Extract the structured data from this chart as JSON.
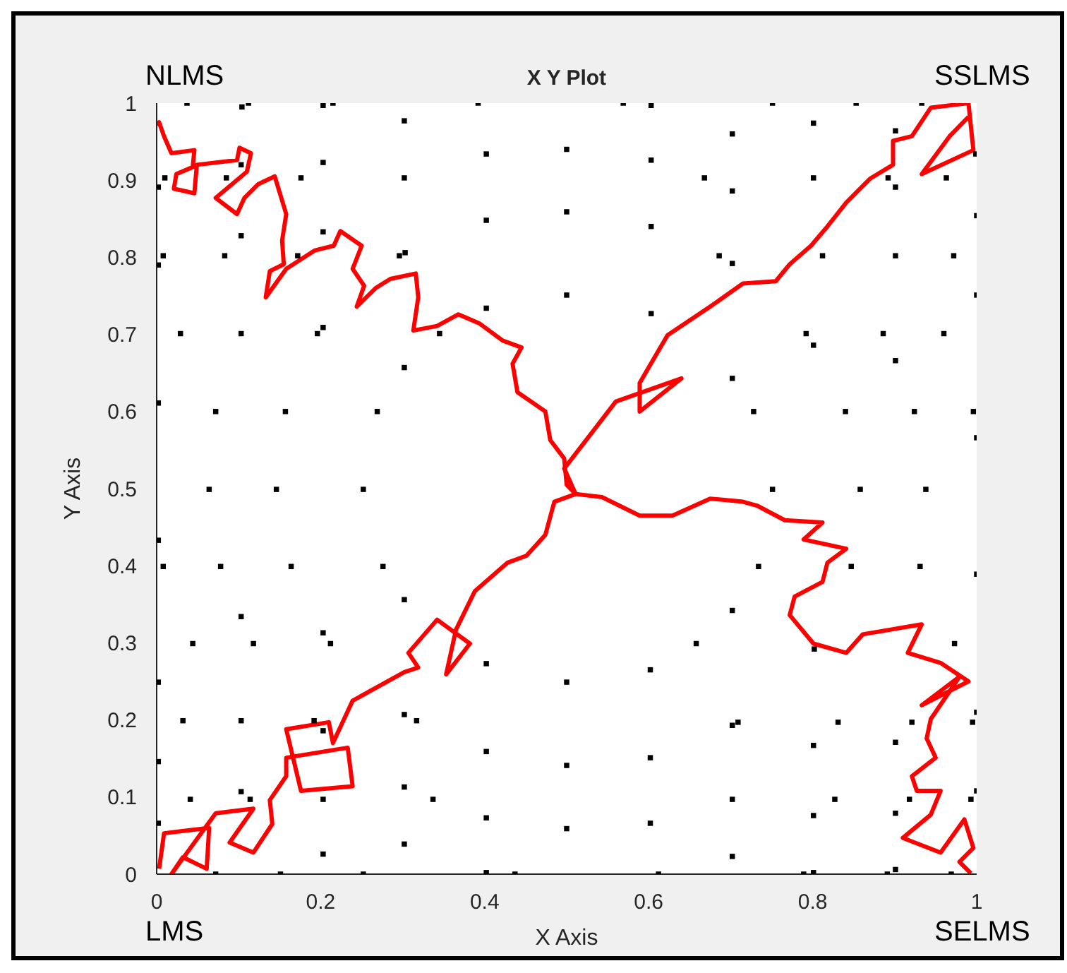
{
  "chart_data": {
    "type": "scatter",
    "title": "X Y Plot",
    "xlabel": "X Axis",
    "ylabel": "Y Axis",
    "xlim": [
      0,
      1
    ],
    "ylim": [
      0,
      1
    ],
    "xticks": [
      0,
      0.2,
      0.4,
      0.6,
      0.8,
      1
    ],
    "yticks": [
      0,
      0.1,
      0.2,
      0.3,
      0.4,
      0.5,
      0.6,
      0.7,
      0.8,
      0.9,
      1
    ],
    "annotations": [
      "NLMS",
      "SSLMS",
      "LMS",
      "SELMS"
    ],
    "series": [
      {
        "color": "#000000",
        "marker": "square",
        "x": [
          0.037,
          0.104,
          0.112,
          0.203,
          0.215,
          0.392,
          0.302,
          0.402,
          0.5,
          0.203,
          0.103,
          0.01,
          0.085,
          0.176,
          0.302,
          0.002,
          0.402,
          0.5,
          0.103,
          0.203,
          0.008,
          0.083,
          0.172,
          0.296,
          0.303,
          0.002,
          0.5,
          0.402,
          0.029,
          0.103,
          0.196,
          0.203,
          0.345,
          0.302,
          0.002,
          0.072,
          0.157,
          0.269,
          0.569,
          0.603,
          0.751,
          0.853,
          0.933,
          0.801,
          0.702,
          0.901,
          0.603,
          0.999,
          0.668,
          0.702,
          0.801,
          0.892,
          0.901,
          0.963,
          0.603,
          1,
          0.686,
          0.702,
          0.812,
          0.901,
          0.972,
          0.603,
          1,
          0.792,
          0.801,
          0.886,
          0.96,
          0.901,
          0.702,
          0.728,
          0.84,
          0.924,
          0.996,
          1,
          0.064,
          0.146,
          0.252,
          0.002,
          0.008,
          0.078,
          0.164,
          0.276,
          0.302,
          0.103,
          0.203,
          0.212,
          0.044,
          0.118,
          0.402,
          0.002,
          0.5,
          0.032,
          0.103,
          0.302,
          0.317,
          0.192,
          0.203,
          0.402,
          0.002,
          0.5,
          0.041,
          0.103,
          0.114,
          0.203,
          0.302,
          0.337,
          0.402,
          0.5,
          0.002,
          0.203,
          0.302,
          0.072,
          0.151,
          0.252,
          0.402,
          0.437,
          0.751,
          0.858,
          0.938,
          0.734,
          0.847,
          0.931,
          1,
          0.702,
          0.658,
          0.802,
          0.973,
          0.602,
          0.702,
          0.709,
          0.831,
          0.921,
          0.995,
          1,
          0.801,
          0.901,
          0.602,
          0.702,
          0.827,
          0.918,
          0.993,
          1,
          0.801,
          0.901,
          0.602,
          0.702,
          0.612,
          0.789,
          0.801,
          0.891,
          0.901,
          0.969
        ],
        "values": [
          1,
          0.995,
          1,
          0.997,
          1,
          1,
          0.977,
          0.934,
          0.94,
          0.923,
          0.92,
          0.903,
          0.903,
          0.903,
          0.903,
          0.891,
          0.848,
          0.859,
          0.828,
          0.833,
          0.802,
          0.802,
          0.802,
          0.802,
          0.806,
          0.79,
          0.751,
          0.734,
          0.701,
          0.701,
          0.701,
          0.709,
          0.701,
          0.657,
          0.611,
          0.6,
          0.6,
          0.6,
          1,
          0.997,
          1,
          1,
          1,
          0.974,
          0.96,
          0.964,
          0.926,
          0.934,
          0.903,
          0.886,
          0.903,
          0.903,
          0.891,
          0.903,
          0.84,
          0.854,
          0.802,
          0.792,
          0.802,
          0.802,
          0.802,
          0.727,
          0.751,
          0.701,
          0.686,
          0.701,
          0.701,
          0.666,
          0.643,
          0.6,
          0.6,
          0.6,
          0.6,
          0.566,
          0.499,
          0.499,
          0.499,
          0.433,
          0.399,
          0.399,
          0.399,
          0.399,
          0.356,
          0.334,
          0.313,
          0.299,
          0.299,
          0.299,
          0.273,
          0.249,
          0.249,
          0.199,
          0.199,
          0.207,
          0.199,
          0.199,
          0.186,
          0.159,
          0.146,
          0.141,
          0.097,
          0.107,
          0.097,
          0.097,
          0.113,
          0.097,
          0.073,
          0.059,
          0.066,
          0.026,
          0.039,
          0,
          0,
          0,
          0.002,
          0,
          0.499,
          0.499,
          0.499,
          0.399,
          0.399,
          0.399,
          0.389,
          0.342,
          0.299,
          0.292,
          0.299,
          0.265,
          0.193,
          0.197,
          0.197,
          0.197,
          0.197,
          0.21,
          0.167,
          0.171,
          0.151,
          0.097,
          0.097,
          0.097,
          0.097,
          0.108,
          0.076,
          0.079,
          0.066,
          0.023,
          0,
          0,
          0.002,
          0,
          0.006,
          0
        ]
      },
      {
        "type": "line",
        "color": "#ff0000",
        "x": [
          0,
          0.003,
          0.009,
          0.018,
          0.046,
          0.044,
          0.024,
          0.021,
          0.046,
          0.049,
          0.098,
          0.101,
          0.115,
          0.11,
          0.072,
          0.098,
          0.107,
          0.124,
          0.144,
          0.158,
          0.153,
          0.155,
          0.138,
          0.133,
          0.158,
          0.193,
          0.216,
          0.224,
          0.25,
          0.239,
          0.253,
          0.244,
          0.267,
          0.285,
          0.316,
          0.319,
          0.313,
          0.342,
          0.368,
          0.394,
          0.422,
          0.445,
          0.434,
          0.44,
          0.474,
          0.48,
          0.497,
          0.5,
          0.511
        ],
        "values": [
          0.972,
          0.975,
          0.957,
          0.935,
          0.939,
          0.917,
          0.908,
          0.889,
          0.883,
          0.92,
          0.926,
          0.942,
          0.935,
          0.911,
          0.877,
          0.856,
          0.877,
          0.895,
          0.905,
          0.856,
          0.822,
          0.791,
          0.782,
          0.748,
          0.785,
          0.809,
          0.815,
          0.834,
          0.815,
          0.785,
          0.763,
          0.736,
          0.76,
          0.772,
          0.779,
          0.748,
          0.705,
          0.711,
          0.726,
          0.714,
          0.692,
          0.683,
          0.662,
          0.625,
          0.6,
          0.563,
          0.539,
          0.505,
          0.493
        ]
      },
      {
        "type": "line",
        "color": "#ff0000",
        "x": [
          0.511,
          0.497,
          0.56,
          0.64,
          0.589,
          0.589,
          0.623,
          0.675,
          0.715,
          0.755,
          0.772,
          0.798,
          0.818,
          0.841,
          0.87,
          0.898,
          0.898,
          0.921,
          0.944,
          0.99,
          0.996,
          0.933,
          0.967,
          0.99
        ],
        "values": [
          0.493,
          0.526,
          0.613,
          0.643,
          0.6,
          0.637,
          0.699,
          0.736,
          0.766,
          0.769,
          0.791,
          0.815,
          0.84,
          0.871,
          0.902,
          0.92,
          0.951,
          0.957,
          0.994,
          1,
          0.939,
          0.908,
          0.957,
          0.982
        ]
      },
      {
        "type": "line",
        "color": "#ff0000",
        "x": [
          0.003,
          0.009,
          0.064,
          0.061,
          0.032,
          0.018,
          0.072,
          0.118,
          0.089,
          0.118,
          0.141,
          0.138,
          0.158,
          0.158,
          0.233,
          0.239,
          0.176,
          0.158,
          0.21,
          0.215,
          0.239,
          0.302,
          0.319,
          0.307,
          0.342,
          0.382,
          0.353,
          0.365,
          0.388,
          0.428,
          0.451,
          0.474,
          0.485,
          0.511
        ],
        "values": [
          0.007,
          0.053,
          0.06,
          0.007,
          0.022,
          0,
          0.079,
          0.085,
          0.041,
          0.028,
          0.065,
          0.096,
          0.127,
          0.151,
          0.164,
          0.114,
          0.108,
          0.188,
          0.197,
          0.17,
          0.225,
          0.262,
          0.268,
          0.287,
          0.33,
          0.299,
          0.259,
          0.317,
          0.367,
          0.404,
          0.413,
          0.44,
          0.483,
          0.493
        ]
      },
      {
        "type": "line",
        "color": "#ff0000",
        "x": [
          0.511,
          0.543,
          0.589,
          0.629,
          0.675,
          0.715,
          0.732,
          0.766,
          0.812,
          0.789,
          0.841,
          0.818,
          0.812,
          0.778,
          0.772,
          0.801,
          0.841,
          0.861,
          0.933,
          0.916,
          0.956,
          0.99,
          0.933,
          0.979,
          0.944,
          0.939,
          0.95,
          0.921,
          0.927,
          0.956,
          0.944,
          0.91,
          0.956,
          0.985,
          0.996,
          0.979,
          0.993
        ],
        "values": [
          0.493,
          0.489,
          0.465,
          0.465,
          0.487,
          0.483,
          0.478,
          0.459,
          0.456,
          0.434,
          0.422,
          0.404,
          0.379,
          0.36,
          0.336,
          0.299,
          0.287,
          0.311,
          0.324,
          0.287,
          0.274,
          0.25,
          0.219,
          0.256,
          0.201,
          0.176,
          0.151,
          0.127,
          0.108,
          0.108,
          0.077,
          0.047,
          0.028,
          0.071,
          0.034,
          0.016,
          0.001
        ]
      }
    ]
  }
}
